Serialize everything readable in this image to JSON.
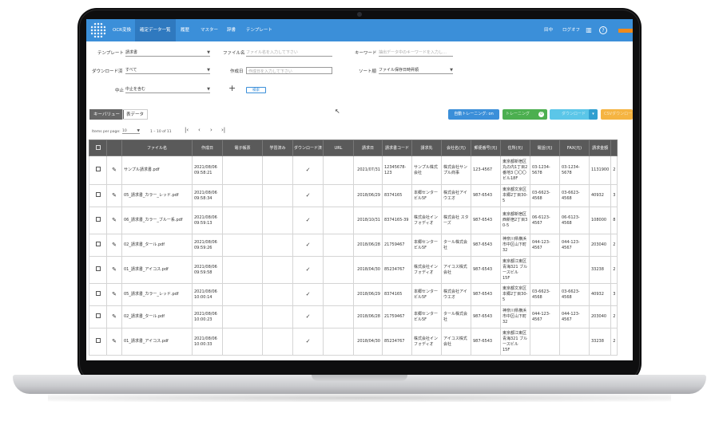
{
  "nav": {
    "items": [
      "OCR変換",
      "確定データ一覧",
      "履歴",
      "マスター",
      "辞書",
      "テンプレート"
    ],
    "active_index": 1,
    "user": "田中",
    "logout": "ログオフ",
    "help": "?"
  },
  "filters": {
    "template_label": "テンプレート",
    "template_value": "請求書",
    "filename_label": "ファイル名",
    "filename_placeholder": "ファイル名を入力して下さい",
    "keyword_label": "キーワード",
    "keyword_placeholder": "抽出データ中のキーワードを入力し…",
    "download_label": "ダウンロード済",
    "download_value": "すべて",
    "created_label": "作成日",
    "created_placeholder": "作成日を入力して下さい",
    "sort_label": "ソート順",
    "sort_value": "ファイル保存日時昇順",
    "cancel_label": "中止",
    "cancel_value": "中止を含む",
    "plus": "+",
    "search_button": "検索"
  },
  "tabs": [
    "キーバリュー",
    "表データ"
  ],
  "actions": {
    "auto_training": "自動トレーニング: on",
    "green_button": "トレーニング",
    "green_badge": "0",
    "cyan_button": "ダウンロード",
    "orange_button": "CSVダウンロード"
  },
  "pager": {
    "items_per_page_label": "Items per page:",
    "items_per_page_value": "10",
    "range": "1 – 10 of 11"
  },
  "table": {
    "headers": [
      "ファイル名",
      "作成日",
      "電子帳票",
      "学習済み",
      "ダウンロード済",
      "URL",
      "請求日",
      "請求書コード",
      "請求先",
      "会社名(元)",
      "郵便番号(元)",
      "住所(元)",
      "電話(元)",
      "FAX(元)",
      "請求金額"
    ],
    "rows": [
      {
        "file": "サンプル請求書.pdf",
        "created": "2021/08/06\n09:58:21",
        "downloaded": true,
        "date": "2021/07/31",
        "code": "12345678-\n123",
        "dest": "サンプル株式\n会社",
        "company": "株式会社サン\nプル商事",
        "zip": "123-4567",
        "addr": "東京都新宿区\n丸の内1丁目2\n番地3 〇〇〇\nビル18F",
        "tel": "03-1234-\n5678",
        "fax": "03-1234-\n5678",
        "amount": "1131900",
        "extra": "2"
      },
      {
        "file": "05_請求書_カラー_レッド.pdf",
        "created": "2021/08/06\n09:58:34",
        "downloaded": true,
        "date": "2018/06/29",
        "code": "8374165",
        "dest": "本郷センター\nビル5F",
        "company": "株式会社アイ\nウエオ",
        "zip": "987-6543",
        "addr": "東京都文京区\n本郷2丁目30-\n5",
        "tel": "03-6623-\n4568",
        "fax": "03-6623-\n4568",
        "amount": "40932",
        "extra": "3"
      },
      {
        "file": "06_請求書_カラー_ブルー系.pdf",
        "created": "2021/08/06\n09:59:13",
        "downloaded": true,
        "date": "2018/10/31",
        "code": "8374165-39",
        "dest": "株式会社イン\nフォディオ",
        "company": "株式会社 スタ\nーズ",
        "zip": "987-6543",
        "addr": "東京都新宿区\n西新宿2丁目3\n0-5",
        "tel": "06-6123-\n4567",
        "fax": "06-6123-\n4568",
        "amount": "108000",
        "extra": "8"
      },
      {
        "file": "02_請求書_タール.pdf",
        "created": "2021/08/06\n09:59:26",
        "downloaded": true,
        "date": "2018/06/28",
        "code": "21759467",
        "dest": "本郷センター\nビル5F",
        "company": "タール株式会\n社",
        "zip": "987-6543",
        "addr": "神奈川県横浜\n市中区山下町\n32",
        "tel": "044-123-\n4567",
        "fax": "044-123-\n4567",
        "amount": "203040",
        "extra": "2"
      },
      {
        "file": "01_請求書_アイコス.pdf",
        "created": "2021/08/06\n09:59:58",
        "downloaded": true,
        "date": "2018/04/30",
        "code": "85234767",
        "dest": "株式会社イン\nフォディオ",
        "company": "アイコス株式\n会社",
        "zip": "987-6543",
        "addr": "東京都江東区\n青海321 ブル\nースビル\n15F",
        "tel": "",
        "fax": "",
        "amount": "33238",
        "extra": "2"
      },
      {
        "file": "05_請求書_カラー_レッド.pdf",
        "created": "2021/08/06\n10:00:14",
        "downloaded": true,
        "date": "2018/06/29",
        "code": "8374165",
        "dest": "本郷センター\nビル5F",
        "company": "株式会社アイ\nウエオ",
        "zip": "987-6543",
        "addr": "東京都文京区\n本郷2丁目30-\n5",
        "tel": "03-6623-\n4568",
        "fax": "03-6623-\n4568",
        "amount": "40932",
        "extra": "3"
      },
      {
        "file": "02_請求書_タール.pdf",
        "created": "2021/08/06\n10:00:23",
        "downloaded": true,
        "date": "2018/06/28",
        "code": "21759467",
        "dest": "本郷センター\nビル5F",
        "company": "タール株式会\n社",
        "zip": "987-6543",
        "addr": "神奈川県横浜\n市中区山下町\n32",
        "tel": "044-123-\n4567",
        "fax": "044-123-\n4567",
        "amount": "203040",
        "extra": "2"
      },
      {
        "file": "01_請求書_アイコス.pdf",
        "created": "2021/08/06\n10:00:33",
        "downloaded": true,
        "date": "2018/04/30",
        "code": "85234767",
        "dest": "株式会社イン\nフォディオ",
        "company": "アイコス株式\n会社",
        "zip": "987-6543",
        "addr": "東京都江東区\n青海321 ブル\nースビル\n15F",
        "tel": "",
        "fax": "",
        "amount": "33238",
        "extra": "2"
      }
    ]
  },
  "colors": {
    "nav_bg": "#3b8fd9",
    "nav_active": "#2f79bf",
    "auto_training": "#3b8fd9",
    "green": "#4caf50",
    "cyan": "#5bc6e8",
    "orange": "#f5b441",
    "table_header": "#5a5a5a"
  },
  "icons": [
    "logo-icon",
    "building-icon",
    "help-icon",
    "edit-pencil-icon",
    "check-icon",
    "first-page-icon",
    "prev-page-icon",
    "next-page-icon",
    "last-page-icon"
  ]
}
